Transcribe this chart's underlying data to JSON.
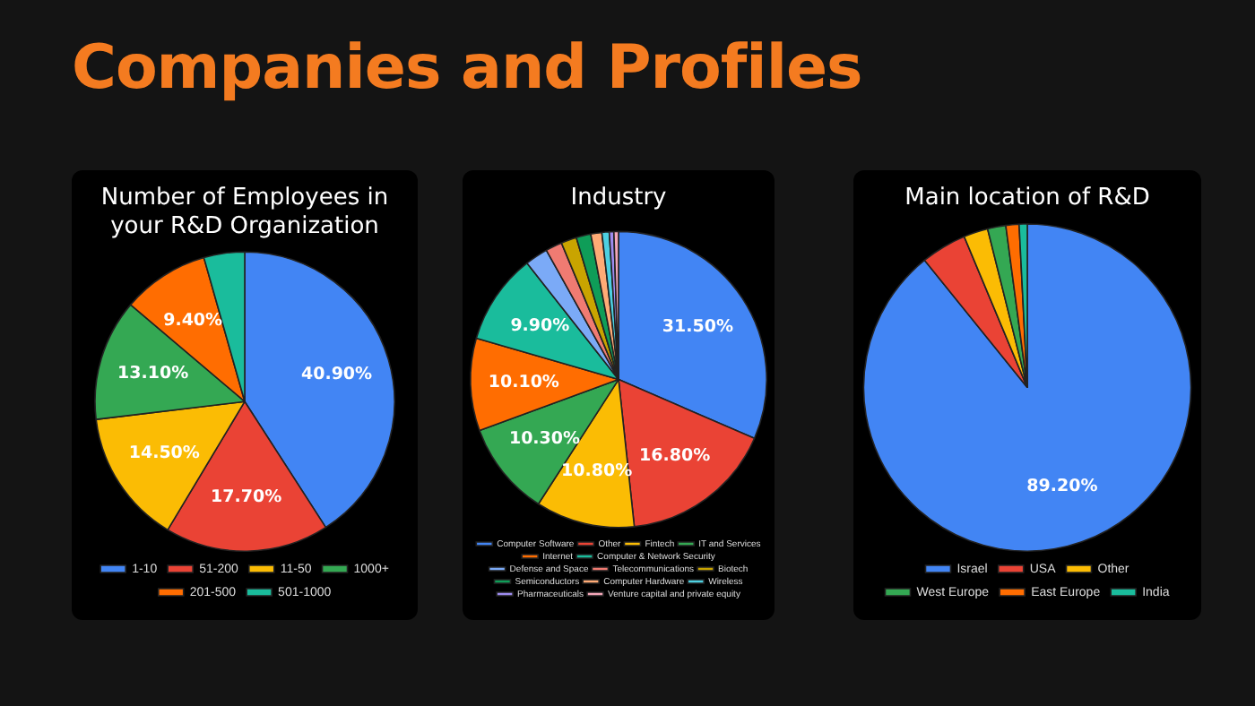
{
  "chart_data": [
    {
      "type": "other",
      "title": "Companies and Profiles"
    },
    {
      "type": "pie",
      "title": "Number of Employees in your R&D Organization",
      "categories": [
        "1-10",
        "51-200",
        "11-50",
        "1000+",
        "201-500",
        "501-1000"
      ],
      "values": [
        40.9,
        17.7,
        14.5,
        13.1,
        9.4,
        4.4
      ],
      "colors": [
        "#4285f4",
        "#ea4335",
        "#fbbc04",
        "#34a853",
        "#ff6d01",
        "#1abc9c"
      ],
      "value_labels": [
        "40.90%",
        "17.70%",
        "14.50%",
        "13.10%",
        "9.40%",
        null
      ],
      "legend": "bottom"
    },
    {
      "type": "pie",
      "title": "Industry",
      "categories": [
        "Computer Software",
        "Other",
        "Fintech",
        "IT and Services",
        "Internet",
        "Computer & Network Security",
        "Defense and Space",
        "Telecommunications",
        "Biotech",
        "Semiconductors",
        "Computer Hardware",
        "Wireless",
        "Pharmaceuticals",
        "Venture capital and private equity"
      ],
      "values": [
        31.5,
        16.8,
        10.8,
        10.3,
        10.1,
        9.9,
        2.5,
        1.8,
        1.7,
        1.6,
        1.2,
        0.8,
        0.5,
        0.5
      ],
      "colors": [
        "#4285f4",
        "#ea4335",
        "#fbbc04",
        "#34a853",
        "#ff6d01",
        "#1abc9c",
        "#7baaf7",
        "#f07b72",
        "#c9a400",
        "#0f9d58",
        "#ffab76",
        "#4dd0e1",
        "#9e8cf0",
        "#f4a7b9"
      ],
      "value_labels": [
        "31.50%",
        "16.80%",
        "10.80%",
        "10.30%",
        "10.10%",
        "9.90%",
        null,
        null,
        null,
        null,
        null,
        null,
        null,
        null
      ],
      "legend": "bottom"
    },
    {
      "type": "pie",
      "title": "Main location of R&D",
      "categories": [
        "Israel",
        "USA",
        "Other",
        "West Europe",
        "East Europe",
        "India"
      ],
      "values": [
        89.2,
        4.5,
        2.4,
        1.8,
        1.3,
        0.8
      ],
      "colors": [
        "#4285f4",
        "#ea4335",
        "#fbbc04",
        "#34a853",
        "#ff6d01",
        "#1abc9c"
      ],
      "value_labels": [
        "89.20%",
        null,
        null,
        null,
        null,
        null
      ],
      "legend": "bottom"
    }
  ]
}
